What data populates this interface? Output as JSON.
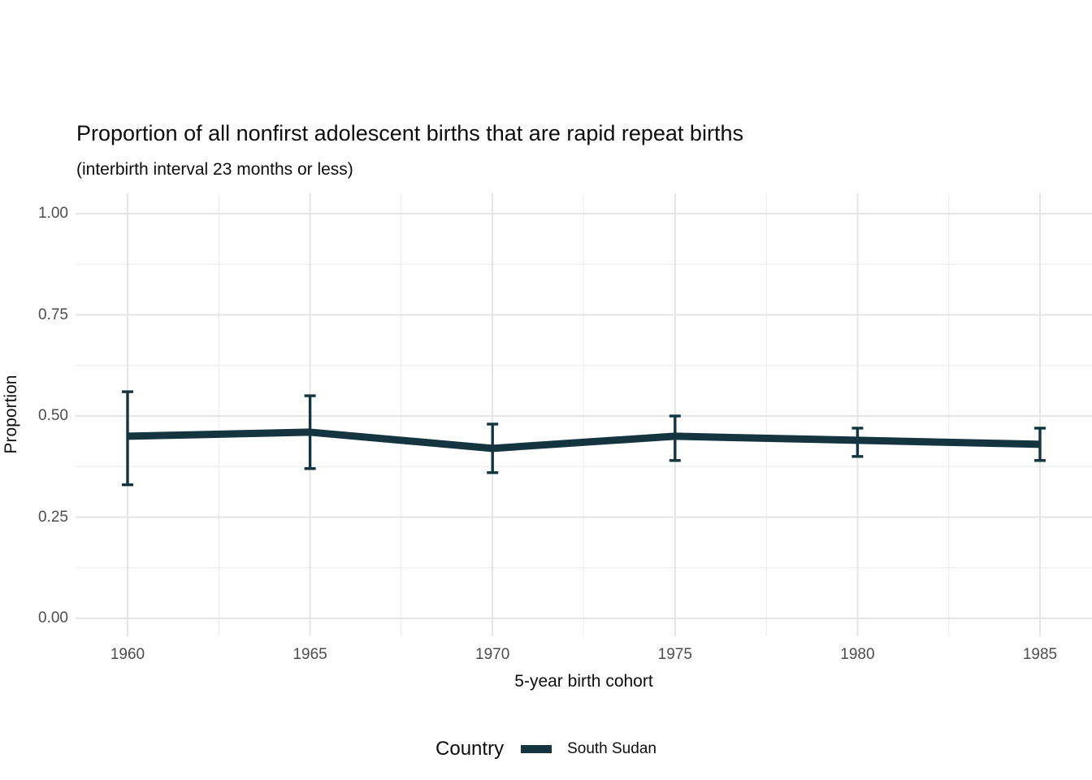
{
  "chart_data": {
    "type": "line",
    "title": "Proportion of all nonfirst adolescent births that are rapid repeat births",
    "subtitle": "(interbirth interval 23 months or less)",
    "xlabel": "5-year birth cohort",
    "ylabel": "Proportion",
    "x": [
      1960,
      1965,
      1970,
      1975,
      1980,
      1985
    ],
    "x_tick_labels": [
      "1960",
      "1965",
      "1970",
      "1975",
      "1980",
      "1985"
    ],
    "y_ticks": [
      0.0,
      0.25,
      0.5,
      0.75,
      1.0
    ],
    "y_tick_labels": [
      "0.00",
      "0.25",
      "0.50",
      "0.75",
      "1.00"
    ],
    "ylim": [
      0,
      1
    ],
    "grid": "major-and-minor",
    "legend_position": "bottom",
    "legend_title": "Country",
    "series": [
      {
        "name": "South Sudan",
        "color": "#143540",
        "values": [
          0.45,
          0.46,
          0.42,
          0.45,
          0.44,
          0.43
        ],
        "lower": [
          0.33,
          0.37,
          0.36,
          0.39,
          0.4,
          0.39
        ],
        "upper": [
          0.56,
          0.55,
          0.48,
          0.5,
          0.47,
          0.47
        ]
      }
    ],
    "colors": {
      "grid_major": "#e5e5e5",
      "grid_minor": "#f0f0f0",
      "tick_text": "#4d4d4d",
      "text": "#0d0d0d",
      "background": "#ffffff"
    }
  }
}
